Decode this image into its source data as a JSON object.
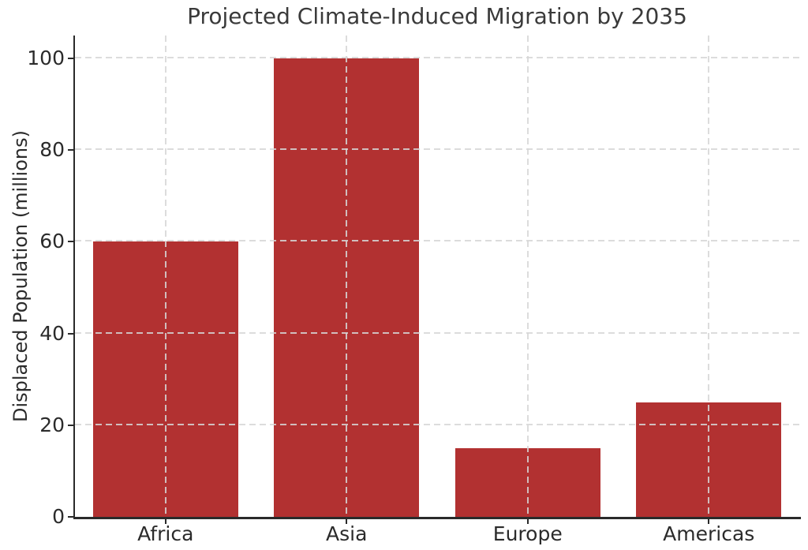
{
  "chart_data": {
    "type": "bar",
    "title": "Projected Climate-Induced Migration by 2035",
    "categories": [
      "Africa",
      "Asia",
      "Europe",
      "Americas"
    ],
    "values": [
      60,
      100,
      15,
      25
    ],
    "xlabel": "",
    "ylabel": "Displaced Population (millions)",
    "ylim": [
      0,
      105
    ],
    "yticks": [
      0,
      20,
      40,
      60,
      80,
      100
    ],
    "grid": "dashed, both axes, drawn over bars",
    "legend_position": "none",
    "bar_color": "#b23131",
    "grid_color": "#d6d6d6",
    "axis_color": "#2a2a2a",
    "text_color": "#2b2b2b",
    "background_color": "#ffffff"
  }
}
